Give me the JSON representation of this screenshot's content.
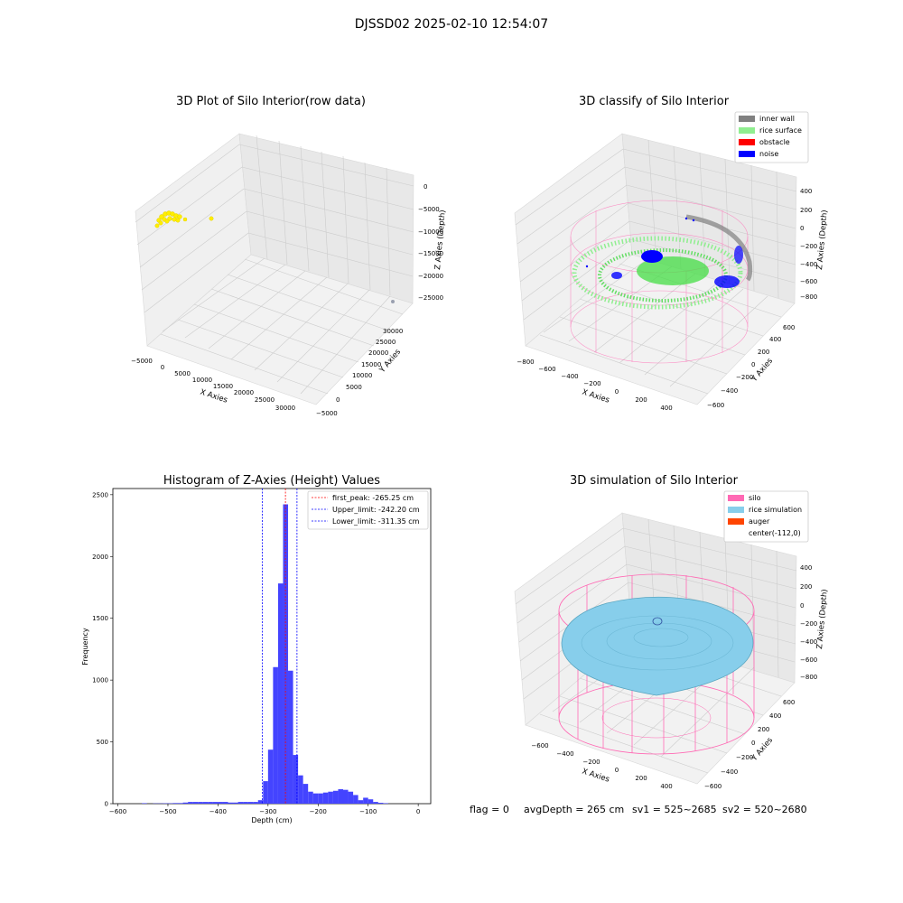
{
  "figure_title": "DJSSD02 2025-02-10 12:54:07",
  "status_line": {
    "flag": "flag = 0",
    "avg_depth": "avgDepth = 265 cm",
    "sv1": "sv1 = 525~2685",
    "sv2": "sv2 = 520~2680"
  },
  "colors": {
    "raw_points": "#ffee00",
    "inner_wall": "#808080",
    "rice_surface": "#90ee90",
    "obstacle": "#ff0000",
    "noise": "#0000ff",
    "silo": "#ff69b4",
    "rice_simulation": "#87ceeb",
    "auger": "#ff4500",
    "histogram_bar": "#4444ff",
    "first_peak_line": "#ff0000",
    "limit_lines": "#0000ff"
  },
  "chart_data": [
    {
      "type": "scatter",
      "title": "3D Plot of Silo Interior(row data)",
      "xlabel": "X Axies",
      "ylabel": "Y Axies",
      "zlabel": "Z Axies (Depth)",
      "x_ticks": [
        "−5000",
        "0",
        "5000",
        "10000",
        "15000",
        "20000",
        "25000",
        "30000"
      ],
      "y_ticks": [
        "−5000",
        "0",
        "5000",
        "10000",
        "15000",
        "20000",
        "25000",
        "30000"
      ],
      "z_ticks": [
        "0",
        "−5000",
        "−10000",
        "−15000",
        "−20000",
        "−25000"
      ]
    },
    {
      "type": "scatter",
      "title": "3D classify of Silo Interior",
      "xlabel": "X Axies",
      "ylabel": "Y Axies",
      "zlabel": "Z Axies (Depth)",
      "x_ticks": [
        "−800",
        "−600",
        "−400",
        "−200",
        "0",
        "200",
        "400"
      ],
      "y_ticks": [
        "−600",
        "−400",
        "−200",
        "0",
        "200",
        "400",
        "600"
      ],
      "z_ticks": [
        "400",
        "200",
        "0",
        "−200",
        "−400",
        "−600",
        "−800"
      ],
      "legend": [
        "inner wall",
        "rice surface",
        "obstacle",
        "noise"
      ],
      "legend_position": "top-right"
    },
    {
      "type": "bar",
      "title": "Histogram of Z-Axies (Height) Values",
      "xlabel": "Depth (cm)",
      "ylabel": "Frequency",
      "xlim": [
        -610,
        25
      ],
      "ylim": [
        0,
        2550
      ],
      "x_ticks": [
        "−600",
        "−500",
        "−400",
        "−300",
        "−200",
        "−100",
        "0"
      ],
      "y_ticks": [
        "0",
        "500",
        "1000",
        "1500",
        "2000",
        "2500"
      ],
      "bin_width": 10,
      "bins": [
        {
          "x": -552,
          "count": 4
        },
        {
          "x": -530,
          "count": 2
        },
        {
          "x": -520,
          "count": 2
        },
        {
          "x": -510,
          "count": 3
        },
        {
          "x": -500,
          "count": 3
        },
        {
          "x": -490,
          "count": 5
        },
        {
          "x": -480,
          "count": 5
        },
        {
          "x": -470,
          "count": 9
        },
        {
          "x": -460,
          "count": 14
        },
        {
          "x": -450,
          "count": 14
        },
        {
          "x": -440,
          "count": 14
        },
        {
          "x": -430,
          "count": 14
        },
        {
          "x": -420,
          "count": 14
        },
        {
          "x": -410,
          "count": 14
        },
        {
          "x": -400,
          "count": 14
        },
        {
          "x": -390,
          "count": 14
        },
        {
          "x": -380,
          "count": 9
        },
        {
          "x": -370,
          "count": 9
        },
        {
          "x": -360,
          "count": 14
        },
        {
          "x": -350,
          "count": 14
        },
        {
          "x": -340,
          "count": 14
        },
        {
          "x": -330,
          "count": 14
        },
        {
          "x": -320,
          "count": 28
        },
        {
          "x": -310,
          "count": 182
        },
        {
          "x": -300,
          "count": 437
        },
        {
          "x": -290,
          "count": 1105
        },
        {
          "x": -280,
          "count": 1782
        },
        {
          "x": -270,
          "count": 2422
        },
        {
          "x": -260,
          "count": 1076
        },
        {
          "x": -250,
          "count": 394
        },
        {
          "x": -240,
          "count": 229
        },
        {
          "x": -230,
          "count": 160
        },
        {
          "x": -220,
          "count": 97
        },
        {
          "x": -210,
          "count": 83
        },
        {
          "x": -200,
          "count": 83
        },
        {
          "x": -190,
          "count": 90
        },
        {
          "x": -180,
          "count": 97
        },
        {
          "x": -170,
          "count": 104
        },
        {
          "x": -160,
          "count": 117
        },
        {
          "x": -150,
          "count": 112
        },
        {
          "x": -140,
          "count": 97
        },
        {
          "x": -130,
          "count": 70
        },
        {
          "x": -120,
          "count": 28
        },
        {
          "x": -110,
          "count": 48
        },
        {
          "x": -100,
          "count": 35
        },
        {
          "x": -90,
          "count": 14
        },
        {
          "x": -80,
          "count": 7
        },
        {
          "x": -70,
          "count": 4
        }
      ],
      "reference_lines": [
        {
          "label": "first_peak: -265.25 cm",
          "value": -265.25,
          "color": "#ff0000"
        },
        {
          "label": "Upper_limit: -242.20 cm",
          "value": -242.2,
          "color": "#0000ff"
        },
        {
          "label": "Lower_limit: -311.35 cm",
          "value": -311.35,
          "color": "#0000ff"
        }
      ],
      "legend_position": "top-right"
    },
    {
      "type": "scatter",
      "title": "3D simulation of Silo Interior",
      "xlabel": "X Axies",
      "ylabel": "Y Axies",
      "zlabel": "Z Axies (Depth)",
      "x_ticks": [
        "−600",
        "−400",
        "−200",
        "0",
        "200",
        "400"
      ],
      "y_ticks": [
        "−600",
        "−400",
        "−200",
        "0",
        "200",
        "400",
        "600"
      ],
      "z_ticks": [
        "400",
        "200",
        "0",
        "−200",
        "−400",
        "−600",
        "−800"
      ],
      "legend": [
        "silo",
        "rice simulation",
        "auger",
        "center(-112,0)"
      ],
      "legend_position": "top-right"
    }
  ]
}
